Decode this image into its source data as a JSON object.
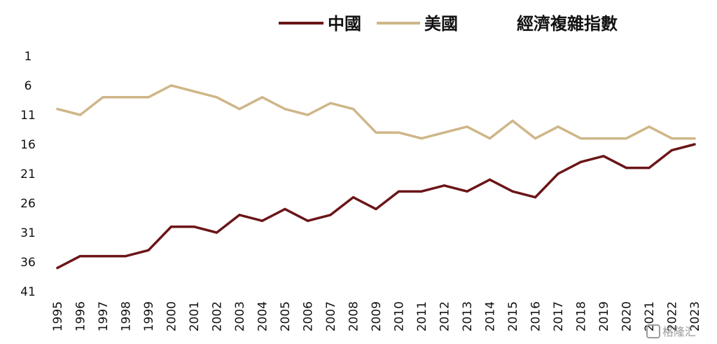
{
  "chart_data": {
    "type": "line",
    "title": "經濟複雜指數",
    "xlabel": "",
    "ylabel": "",
    "y_inverted": true,
    "ylim": [
      1,
      41
    ],
    "yticks": [
      "1",
      "6",
      "11",
      "16",
      "21",
      "26",
      "31",
      "36",
      "41"
    ],
    "x": [
      "1995",
      "1996",
      "1997",
      "1998",
      "1999",
      "2000",
      "2001",
      "2002",
      "2003",
      "2004",
      "2005",
      "2006",
      "2007",
      "2008",
      "2009",
      "2010",
      "2011",
      "2012",
      "2013",
      "2014",
      "2015",
      "2016",
      "2017",
      "2018",
      "2019",
      "2020",
      "2021",
      "2022",
      "2023"
    ],
    "series": [
      {
        "name": "中國",
        "color": "#6b1518",
        "values": [
          37,
          35,
          35,
          35,
          34,
          30,
          30,
          31,
          28,
          29,
          27,
          29,
          28,
          25,
          27,
          24,
          24,
          23,
          24,
          22,
          24,
          25,
          21,
          19,
          18,
          20,
          20,
          17,
          16
        ]
      },
      {
        "name": "美國",
        "color": "#cfb688",
        "values": [
          10,
          11,
          8,
          8,
          8,
          6,
          7,
          8,
          10,
          8,
          10,
          11,
          9,
          10,
          14,
          14,
          15,
          14,
          13,
          15,
          12,
          15,
          13,
          15,
          15,
          15,
          13,
          15,
          15
        ]
      }
    ],
    "legend_position": "top",
    "grid": false
  },
  "watermark": "格隆汇"
}
